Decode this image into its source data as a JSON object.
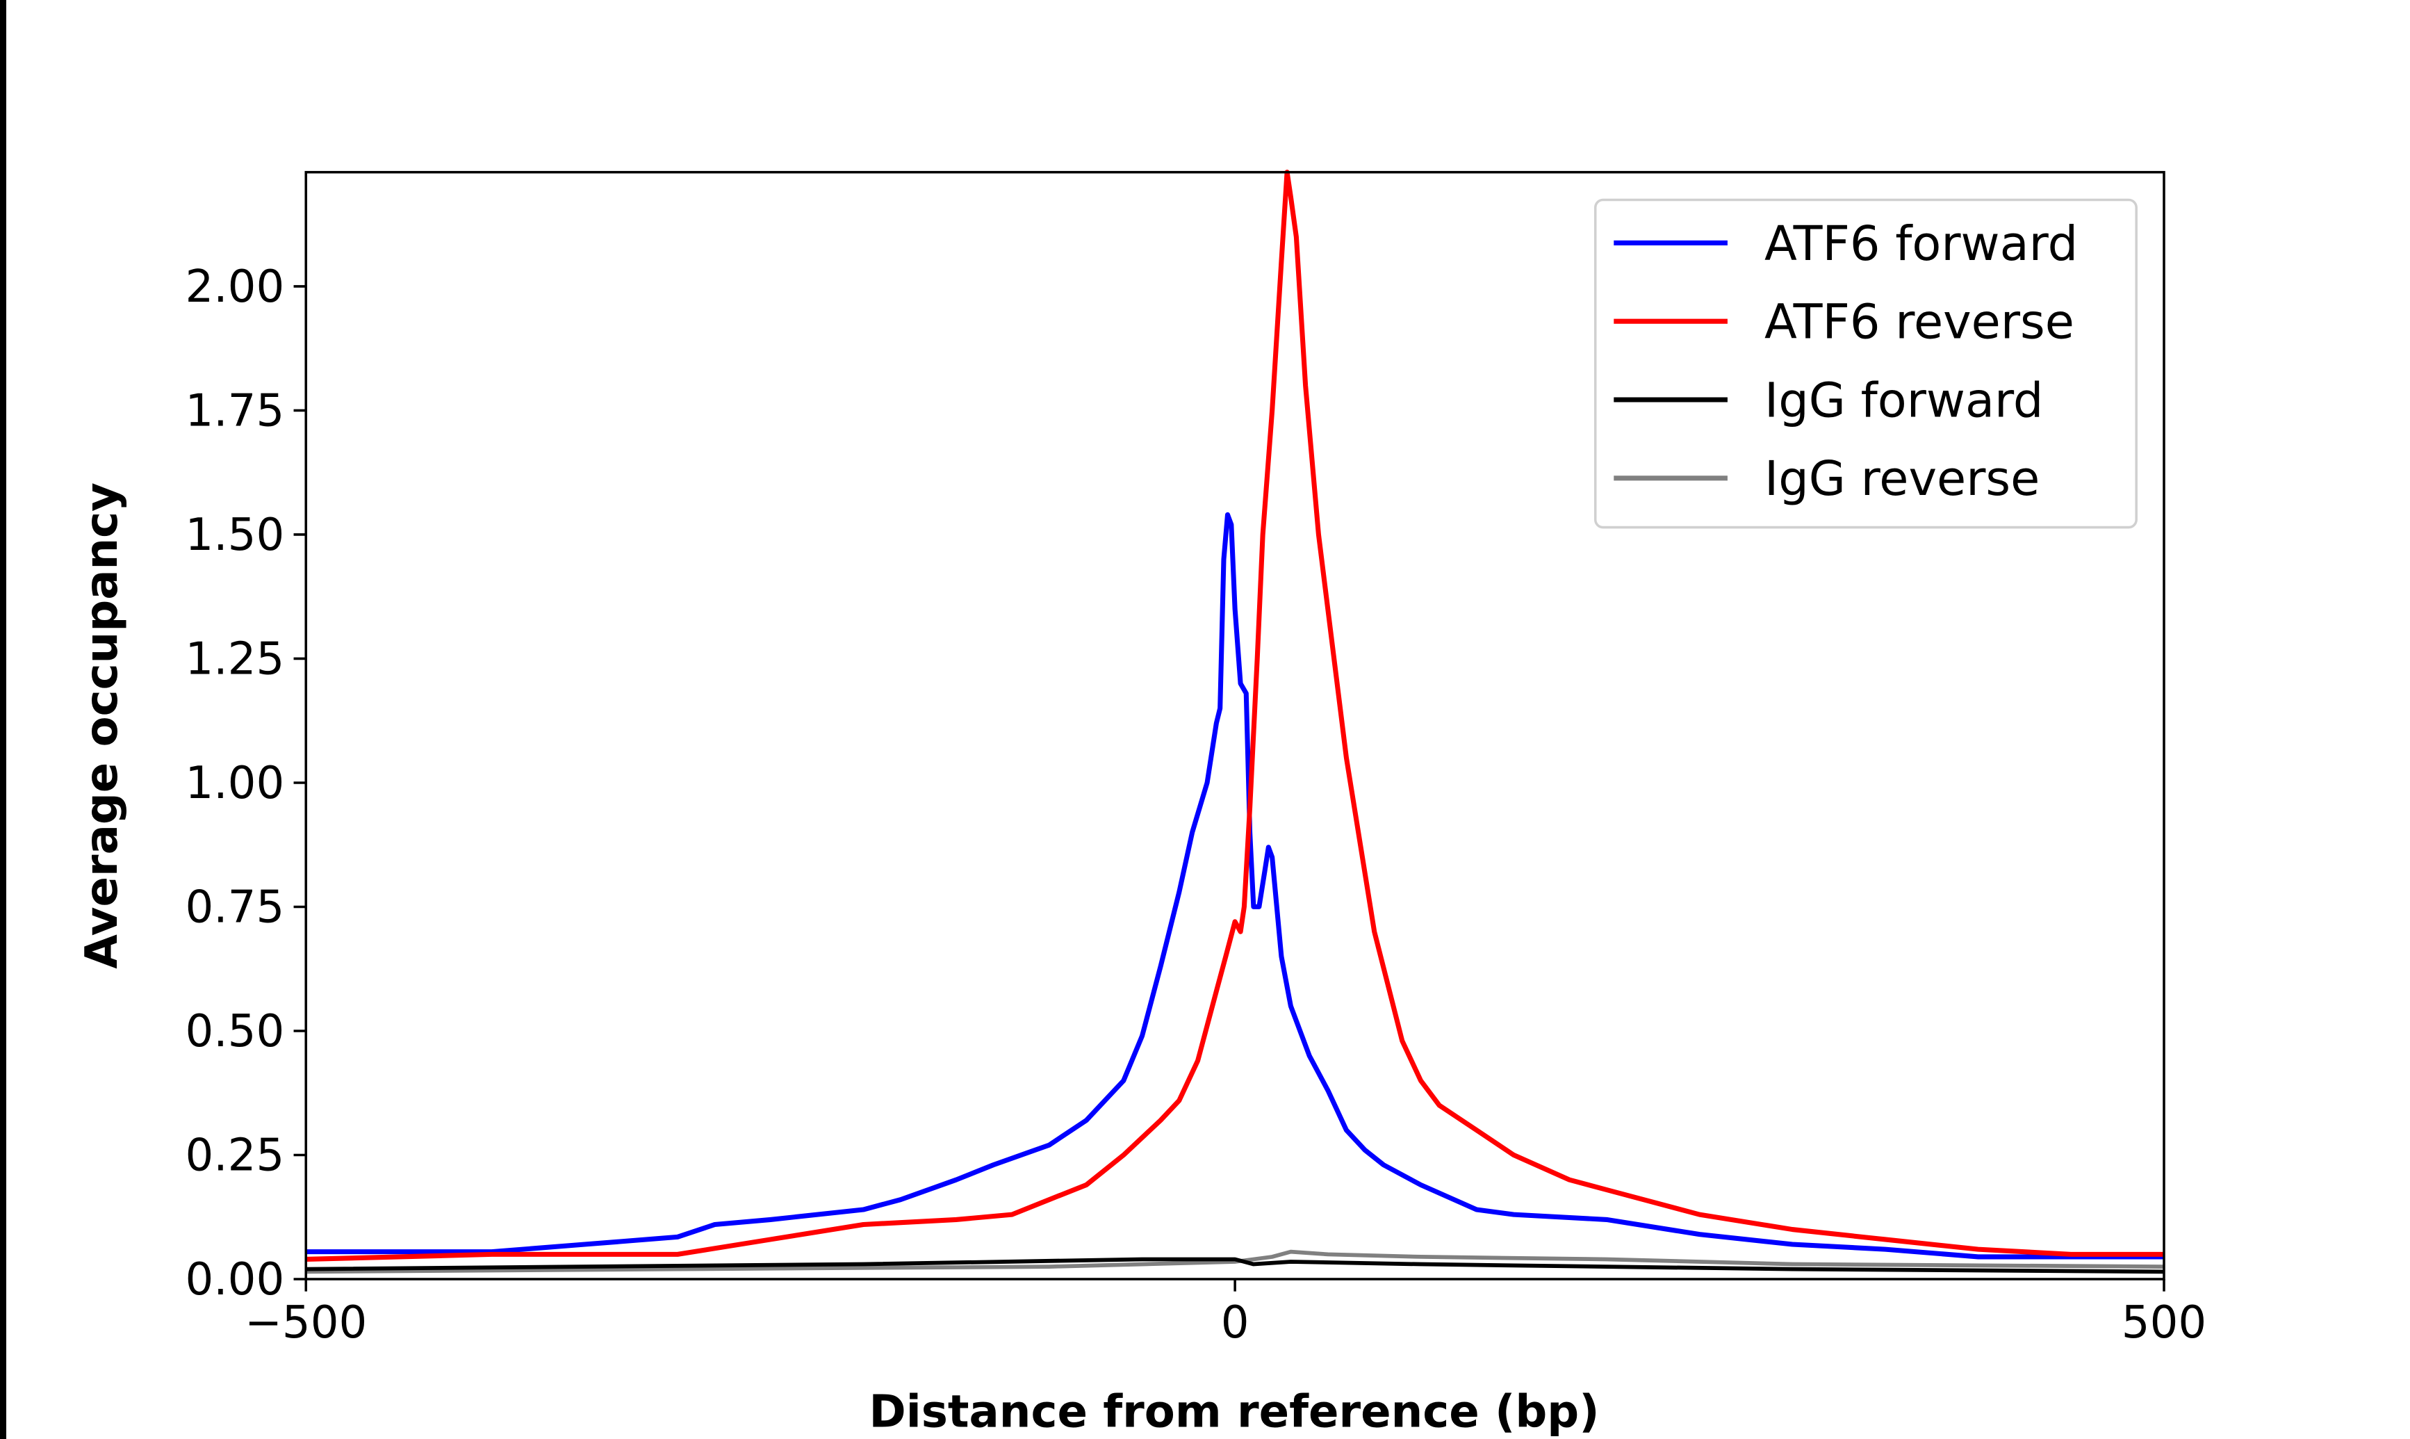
{
  "chart_data": {
    "type": "line",
    "title": "",
    "xlabel": "Distance from reference (bp)",
    "ylabel": "Average occupancy",
    "xlim": [
      -500,
      500
    ],
    "ylim": [
      0,
      2.23
    ],
    "xticks": [
      -500,
      0,
      500
    ],
    "xtick_labels": [
      "−500",
      "0",
      "500"
    ],
    "yticks": [
      0,
      0.25,
      0.5,
      0.75,
      1.0,
      1.25,
      1.5,
      1.75,
      2.0
    ],
    "ytick_labels": [
      "0.00",
      "0.25",
      "0.50",
      "0.75",
      "1.00",
      "1.25",
      "1.50",
      "1.75",
      "2.00"
    ],
    "grid": false,
    "legend_position": "top-right",
    "series": [
      {
        "name": "ATF6 forward",
        "color": "#0000ff",
        "x": [
          -500,
          -400,
          -350,
          -300,
          -280,
          -250,
          -200,
          -180,
          -150,
          -130,
          -100,
          -80,
          -60,
          -50,
          -40,
          -30,
          -23,
          -15,
          -10,
          -8,
          -6,
          -4,
          -2,
          0,
          3,
          6,
          8,
          10,
          13,
          16,
          18,
          20,
          25,
          30,
          40,
          50,
          60,
          70,
          80,
          100,
          130,
          150,
          200,
          250,
          300,
          350,
          400,
          450,
          500
        ],
        "y": [
          0.055,
          0.055,
          0.07,
          0.085,
          0.11,
          0.12,
          0.14,
          0.16,
          0.2,
          0.23,
          0.27,
          0.32,
          0.4,
          0.49,
          0.63,
          0.78,
          0.9,
          1.0,
          1.12,
          1.15,
          1.45,
          1.54,
          1.52,
          1.35,
          1.2,
          1.18,
          0.9,
          0.75,
          0.75,
          0.82,
          0.87,
          0.85,
          0.65,
          0.55,
          0.45,
          0.38,
          0.3,
          0.26,
          0.23,
          0.19,
          0.14,
          0.13,
          0.12,
          0.09,
          0.07,
          0.06,
          0.045,
          0.045,
          0.045
        ]
      },
      {
        "name": "ATF6 reverse",
        "color": "#ff0000",
        "x": [
          -500,
          -400,
          -300,
          -250,
          -200,
          -150,
          -120,
          -100,
          -80,
          -60,
          -40,
          -30,
          -20,
          -10,
          -5,
          0,
          3,
          5,
          8,
          12,
          15,
          20,
          25,
          28,
          30,
          33,
          38,
          45,
          60,
          75,
          90,
          100,
          110,
          130,
          150,
          180,
          200,
          250,
          300,
          350,
          400,
          450,
          500
        ],
        "y": [
          0.04,
          0.05,
          0.05,
          0.08,
          0.11,
          0.12,
          0.13,
          0.16,
          0.19,
          0.25,
          0.32,
          0.36,
          0.44,
          0.58,
          0.65,
          0.72,
          0.7,
          0.75,
          0.95,
          1.25,
          1.5,
          1.75,
          2.05,
          2.23,
          2.18,
          2.1,
          1.8,
          1.5,
          1.05,
          0.7,
          0.48,
          0.4,
          0.35,
          0.3,
          0.25,
          0.2,
          0.18,
          0.13,
          0.1,
          0.08,
          0.06,
          0.05,
          0.05
        ]
      },
      {
        "name": "IgG forward",
        "color": "#000000",
        "x": [
          -500,
          -200,
          -50,
          0,
          10,
          30,
          100,
          300,
          500
        ],
        "y": [
          0.02,
          0.03,
          0.04,
          0.04,
          0.03,
          0.035,
          0.03,
          0.02,
          0.015
        ]
      },
      {
        "name": "IgG reverse",
        "color": "#808080",
        "x": [
          -500,
          -300,
          -100,
          0,
          20,
          30,
          50,
          100,
          200,
          300,
          500
        ],
        "y": [
          0.015,
          0.02,
          0.025,
          0.035,
          0.045,
          0.055,
          0.05,
          0.045,
          0.04,
          0.03,
          0.025
        ]
      }
    ]
  }
}
